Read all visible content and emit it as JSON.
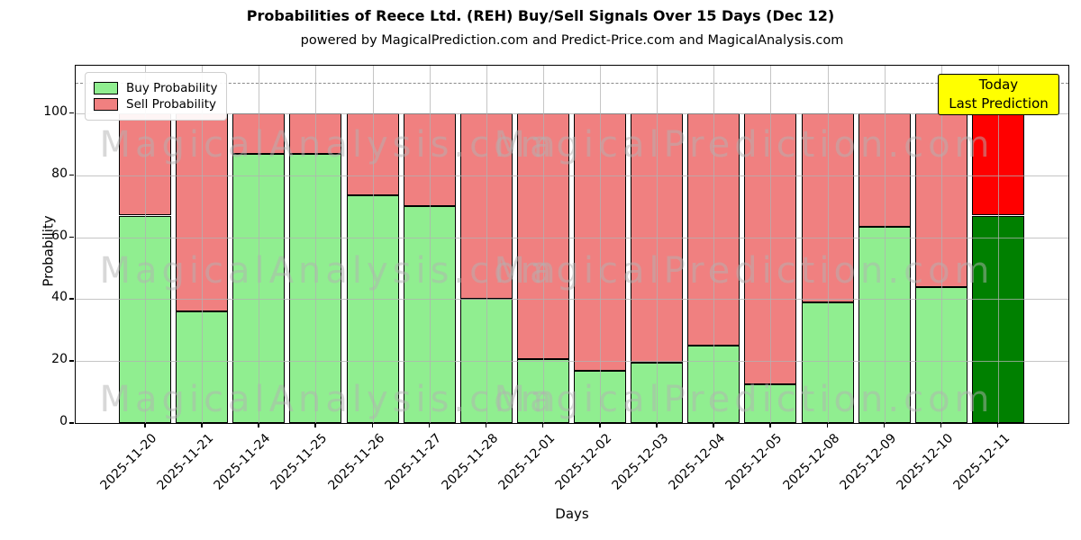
{
  "title": "Probabilities of Reece Ltd. (REH) Buy/Sell Signals Over 15 Days (Dec 12)",
  "subtitle": "powered by MagicalPrediction.com and Predict-Price.com and MagicalAnalysis.com",
  "watermarks": {
    "left_text": "MagicalAnalysis.com",
    "right_text": "MagicalPrediction.com"
  },
  "annotation": {
    "line1": "Today",
    "line2": "Last Prediction",
    "bg_color": "#ffff00"
  },
  "legend": {
    "items": [
      {
        "label": "Buy Probability",
        "color": "#90ee90"
      },
      {
        "label": "Sell Probability",
        "color": "#f08080"
      }
    ]
  },
  "colors": {
    "buy": "#90ee90",
    "sell": "#f08080",
    "buy_today": "#008000",
    "sell_today": "#ff0000",
    "bar_edge": "#000000",
    "grid": "#b2b2b2",
    "dashed_line": "#8a8a8a",
    "annotation_bg": "#ffff00"
  },
  "chart_data": {
    "type": "bar",
    "stacked": true,
    "title": "Probabilities of Reece Ltd. (REH) Buy/Sell Signals Over 15 Days (Dec 12)",
    "xlabel": "Days",
    "ylabel": "Probability",
    "categories": [
      "2025-11-20",
      "2025-11-21",
      "2025-11-24",
      "2025-11-25",
      "2025-11-26",
      "2025-11-27",
      "2025-11-28",
      "2025-12-01",
      "2025-12-02",
      "2025-12-03",
      "2025-12-04",
      "2025-12-05",
      "2025-12-08",
      "2025-12-09",
      "2025-12-10",
      "2025-12-11"
    ],
    "series": [
      {
        "name": "Buy Probability",
        "values": [
          67,
          36,
          87,
          87,
          73.5,
          70,
          40,
          20.5,
          17,
          19.5,
          25,
          12.5,
          39,
          63.5,
          44,
          67
        ]
      },
      {
        "name": "Sell Probability",
        "values": [
          33,
          64,
          13,
          13,
          26.5,
          30,
          60,
          79.5,
          83,
          80.5,
          75,
          87.5,
          61,
          36.5,
          56,
          33
        ]
      }
    ],
    "today_index": 15,
    "ylim": [
      0,
      115.4
    ],
    "yticks": [
      0,
      20,
      40,
      60,
      80,
      100
    ],
    "dashed_line_y": 110,
    "grid": true,
    "legend_position": "upper left"
  }
}
